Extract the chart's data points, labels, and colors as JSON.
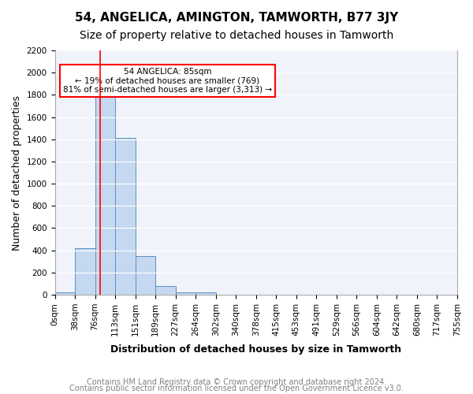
{
  "title": "54, ANGELICA, AMINGTON, TAMWORTH, B77 3JY",
  "subtitle": "Size of property relative to detached houses in Tamworth",
  "xlabel": "Distribution of detached houses by size in Tamworth",
  "ylabel": "Number of detached properties",
  "footer_line1": "Contains HM Land Registry data © Crown copyright and database right 2024.",
  "footer_line2": "Contains public sector information licensed under the Open Government Licence v3.0.",
  "bin_labels": [
    "0sqm",
    "38sqm",
    "76sqm",
    "113sqm",
    "151sqm",
    "189sqm",
    "227sqm",
    "264sqm",
    "302sqm",
    "340sqm",
    "378sqm",
    "415sqm",
    "453sqm",
    "491sqm",
    "529sqm",
    "566sqm",
    "604sqm",
    "642sqm",
    "680sqm",
    "717sqm",
    "755sqm"
  ],
  "bar_heights": [
    20,
    420,
    1810,
    1410,
    350,
    75,
    25,
    20,
    0,
    0,
    0,
    0,
    0,
    0,
    0,
    0,
    0,
    0,
    0,
    0
  ],
  "bar_color": "#c5d8f0",
  "bar_edge_color": "#5a8fc3",
  "red_line_x": 2.25,
  "annotation_text": "54 ANGELICA: 85sqm\n← 19% of detached houses are smaller (769)\n81% of semi-detached houses are larger (3,313) →",
  "annotation_box_color": "red",
  "ylim": [
    0,
    2200
  ],
  "yticks": [
    0,
    200,
    400,
    600,
    800,
    1000,
    1200,
    1400,
    1600,
    1800,
    2000,
    2200
  ],
  "background_color": "#f0f4fa",
  "grid_color": "white",
  "title_fontsize": 11,
  "subtitle_fontsize": 10,
  "axis_fontsize": 9,
  "tick_fontsize": 7.5,
  "footer_fontsize": 7
}
